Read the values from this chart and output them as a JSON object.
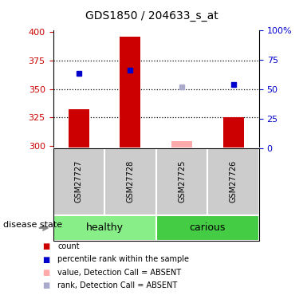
{
  "title": "GDS1850 / 204633_s_at",
  "samples": [
    "GSM27727",
    "GSM27728",
    "GSM27725",
    "GSM27726"
  ],
  "count_values": [
    332,
    396,
    304,
    325
  ],
  "rank_values": [
    63,
    66,
    null,
    54
  ],
  "absent_value": [
    null,
    null,
    304,
    null
  ],
  "absent_rank": [
    null,
    null,
    52,
    null
  ],
  "ylim_left": [
    298,
    402
  ],
  "ylim_right": [
    0,
    100
  ],
  "yticks_left": [
    300,
    325,
    350,
    375,
    400
  ],
  "yticks_right": [
    0,
    25,
    50,
    75,
    100
  ],
  "ytick_right_labels": [
    "0",
    "25",
    "50",
    "75",
    "100%"
  ],
  "hlines": [
    325,
    350,
    375
  ],
  "left_color": "#cc0000",
  "right_color": "#0000cc",
  "absent_bar_color": "#ffaaaa",
  "absent_rank_color": "#aaaacc",
  "healthy_color": "#88ee88",
  "carious_color": "#44cc44",
  "sample_box_color": "#cccccc",
  "group_border_color": "#000000",
  "bar_width": 0.4,
  "marker_size": 5
}
